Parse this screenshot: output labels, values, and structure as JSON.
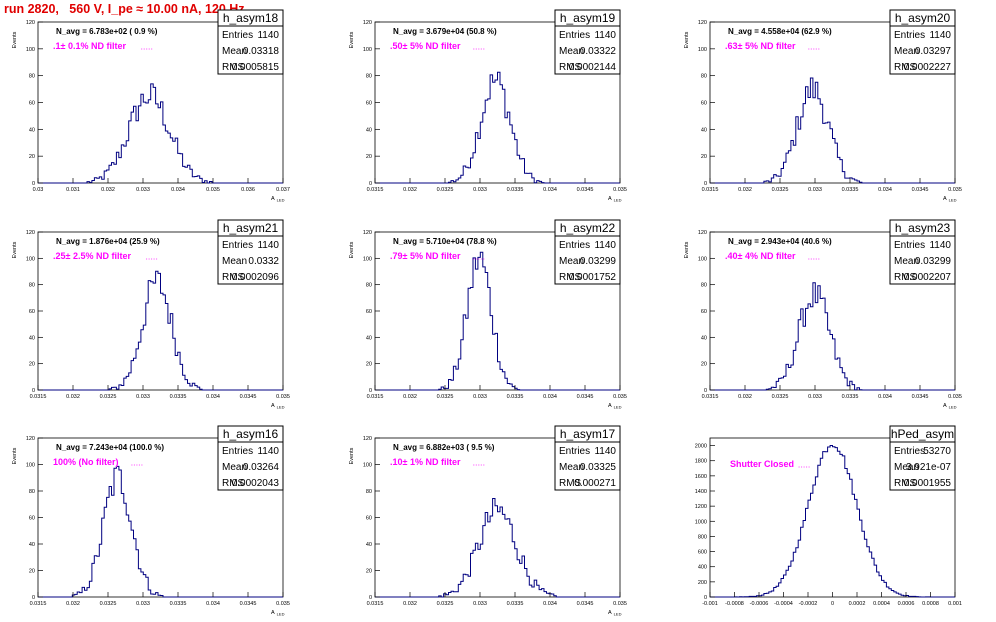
{
  "title": "run 2820,   560 V, I_pe ≈ 10.00 nA, 120 Hz",
  "chart_data": [
    {
      "type": "bar",
      "name": "h_asym18",
      "navg": "N_avg = 6.783e+02 ( 0.9 %)",
      "filter": ".1± 0.1% ND filter",
      "entries": "1140",
      "mean": "0.03318",
      "rms": "0.0005815",
      "xlim": [
        0.03,
        0.037
      ],
      "ylim": [
        0,
        120
      ],
      "xticks": [
        "0.03",
        "0.031",
        "0.032",
        "0.033",
        "0.034",
        "0.035",
        "0.036",
        "0.037"
      ],
      "yticks": [
        "0",
        "20",
        "40",
        "60",
        "80",
        "100",
        "120"
      ],
      "xlabel": "A_{LED}",
      "ylabel": "Events",
      "peak": 65,
      "center": 0.03318,
      "sigma": 0.00058
    },
    {
      "type": "bar",
      "name": "h_asym19",
      "navg": "N_avg = 3.679e+04 (50.8 %)",
      "filter": ".50± 5% ND filter",
      "entries": "1140",
      "mean": "0.03322",
      "rms": "0.0002144",
      "xlim": [
        0.0315,
        0.035
      ],
      "ylim": [
        0,
        120
      ],
      "xticks": [
        "0.0315",
        "0.032",
        "0.0325",
        "0.033",
        "0.0335",
        "0.034",
        "0.0345",
        "0.035"
      ],
      "yticks": [
        "0",
        "20",
        "40",
        "60",
        "80",
        "100",
        "120"
      ],
      "xlabel": "A_{LED}",
      "ylabel": "Events",
      "peak": 76,
      "center": 0.03322,
      "sigma": 0.000214
    },
    {
      "type": "bar",
      "name": "h_asym20",
      "navg": "N_avg = 4.558e+04 (62.9 %)",
      "filter": ".63± 5% ND filter",
      "entries": "1140",
      "mean": "0.03297",
      "rms": "0.0002227",
      "xlim": [
        0.0315,
        0.035
      ],
      "ylim": [
        0,
        120
      ],
      "xticks": [
        "0.0315",
        "0.032",
        "0.0325",
        "0.033",
        "0.0335",
        "0.034",
        "0.0345",
        "0.035"
      ],
      "yticks": [
        "0",
        "20",
        "40",
        "60",
        "80",
        "100",
        "120"
      ],
      "xlabel": "A_{LED}",
      "ylabel": "Events",
      "peak": 70,
      "center": 0.03297,
      "sigma": 0.000223
    },
    {
      "type": "bar",
      "name": "h_asym21",
      "navg": "N_avg = 1.876e+04 (25.9 %)",
      "filter": ".25± 2.5% ND filter",
      "entries": "1140",
      "mean": "0.0332",
      "rms": "0.0002096",
      "xlim": [
        0.0315,
        0.035
      ],
      "ylim": [
        0,
        120
      ],
      "xticks": [
        "0.0315",
        "0.032",
        "0.0325",
        "0.033",
        "0.0335",
        "0.034",
        "0.0345",
        "0.035"
      ],
      "yticks": [
        "0",
        "20",
        "40",
        "60",
        "80",
        "100",
        "120"
      ],
      "xlabel": "A_{LED}",
      "ylabel": "Events",
      "peak": 82,
      "center": 0.0332,
      "sigma": 0.00021
    },
    {
      "type": "bar",
      "name": "h_asym22",
      "navg": "N_avg = 5.710e+04 (78.8 %)",
      "filter": ".79± 5% ND filter",
      "entries": "1140",
      "mean": "0.03299",
      "rms": "0.0001752",
      "xlim": [
        0.0315,
        0.035
      ],
      "ylim": [
        0,
        120
      ],
      "xticks": [
        "0.0315",
        "0.032",
        "0.0325",
        "0.033",
        "0.0335",
        "0.034",
        "0.0345",
        "0.035"
      ],
      "yticks": [
        "0",
        "20",
        "40",
        "60",
        "80",
        "100",
        "120"
      ],
      "xlabel": "A_{LED}",
      "ylabel": "Events",
      "peak": 100,
      "center": 0.03299,
      "sigma": 0.000175
    },
    {
      "type": "bar",
      "name": "h_asym23",
      "navg": "N_avg = 2.943e+04 (40.6 %)",
      "filter": ".40± 4% ND filter",
      "entries": "1140",
      "mean": "0.03299",
      "rms": "0.0002207",
      "xlim": [
        0.0315,
        0.035
      ],
      "ylim": [
        0,
        120
      ],
      "xticks": [
        "0.0315",
        "0.032",
        "0.0325",
        "0.033",
        "0.0335",
        "0.034",
        "0.0345",
        "0.035"
      ],
      "yticks": [
        "0",
        "20",
        "40",
        "60",
        "80",
        "100",
        "120"
      ],
      "xlabel": "A_{LED}",
      "ylabel": "Events",
      "peak": 72,
      "center": 0.03299,
      "sigma": 0.00022
    },
    {
      "type": "bar",
      "name": "h_asym16",
      "navg": "N_avg = 7.243e+04 (100.0 %)",
      "filter": "100% (No filter)",
      "entries": "1140",
      "mean": "0.03264",
      "rms": "0.0002043",
      "xlim": [
        0.0315,
        0.035
      ],
      "ylim": [
        0,
        120
      ],
      "xticks": [
        "0.0315",
        "0.032",
        "0.0325",
        "0.033",
        "0.0335",
        "0.034",
        "0.0345",
        "0.035"
      ],
      "yticks": [
        "0",
        "20",
        "40",
        "60",
        "80",
        "100",
        "120"
      ],
      "xlabel": "A_{LED}",
      "ylabel": "Events",
      "peak": 90,
      "center": 0.03264,
      "sigma": 0.000204
    },
    {
      "type": "bar",
      "name": "h_asym17",
      "navg": "N_avg = 6.882e+03 ( 9.5 %)",
      "filter": ".10± 1% ND filter",
      "entries": "1140",
      "mean": "0.03325",
      "rms": "0.000271",
      "xlim": [
        0.0315,
        0.035
      ],
      "ylim": [
        0,
        120
      ],
      "xticks": [
        "0.0315",
        "0.032",
        "0.0325",
        "0.033",
        "0.0335",
        "0.034",
        "0.0345",
        "0.035"
      ],
      "yticks": [
        "0",
        "20",
        "40",
        "60",
        "80",
        "100",
        "120"
      ],
      "xlabel": "A_{LED}",
      "ylabel": "Events",
      "peak": 65,
      "center": 0.03325,
      "sigma": 0.000271
    },
    {
      "type": "bar",
      "name": "hPed_asym",
      "navg": "",
      "filter": "Shutter Closed",
      "entries": "53270",
      "mean": "3.921e-07",
      "rms": "0.0001955",
      "xlim": [
        -0.001,
        0.001
      ],
      "ylim": [
        0,
        2100
      ],
      "xticks": [
        "-0.001",
        "-0.0008",
        "-0.0006",
        "-0.0004",
        "-0.0002",
        "0",
        "0.0002",
        "0.0004",
        "0.0006",
        "0.0008",
        "0.001"
      ],
      "yticks": [
        "0",
        "200",
        "400",
        "600",
        "800",
        "1000",
        "1200",
        "1400",
        "1600",
        "1800",
        "2000"
      ],
      "xlabel": "",
      "ylabel": "",
      "peak": 2030,
      "center": 4e-07,
      "sigma": 0.000196
    }
  ]
}
